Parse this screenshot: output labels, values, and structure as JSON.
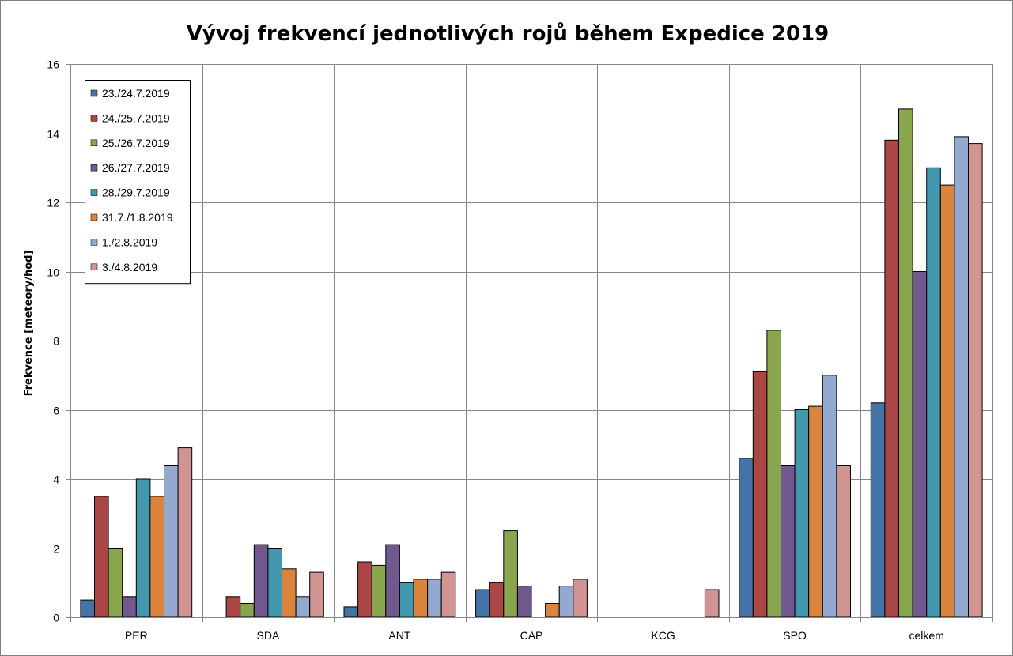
{
  "chart_data": {
    "type": "bar",
    "title": "Vývoj frekvencí jednotlivých rojů během Expedice 2019",
    "xlabel": "",
    "ylabel": "Frekvence [meteory/hod]",
    "ylim": [
      0,
      16
    ],
    "yticks": [
      "0",
      "2",
      "4",
      "6",
      "8",
      "10",
      "12",
      "14",
      "16"
    ],
    "grid": true,
    "legend_position": "top-left",
    "categories": [
      "PER",
      "SDA",
      "ANT",
      "CAP",
      "KCG",
      "SPO",
      "celkem"
    ],
    "series": [
      {
        "name": "23./24.7.2019",
        "color": "#4572A7",
        "values": [
          0.5,
          0,
          0.3,
          0.8,
          0,
          4.6,
          6.2
        ]
      },
      {
        "name": "24./25.7.2019",
        "color": "#AA4643",
        "values": [
          3.5,
          0.6,
          1.6,
          1.0,
          0,
          7.1,
          13.8
        ]
      },
      {
        "name": "25./26.7.2019",
        "color": "#89A54E",
        "values": [
          2.0,
          0.4,
          1.5,
          2.5,
          0,
          8.3,
          14.7
        ]
      },
      {
        "name": "26./27.7.2019",
        "color": "#71588F",
        "values": [
          0.6,
          2.1,
          2.1,
          0.9,
          0,
          4.4,
          10.0
        ]
      },
      {
        "name": "28./29.7.2019",
        "color": "#4198AF",
        "values": [
          4.0,
          2.0,
          1.0,
          0,
          0,
          6.0,
          13.0
        ]
      },
      {
        "name": "31.7./1.8.2019",
        "color": "#DB843D",
        "values": [
          3.5,
          1.4,
          1.1,
          0.4,
          0,
          6.1,
          12.5
        ]
      },
      {
        "name": "1./2.8.2019",
        "color": "#93A9CF",
        "values": [
          4.4,
          0.6,
          1.1,
          0.9,
          0,
          7.0,
          13.9
        ]
      },
      {
        "name": "3./4.8.2019",
        "color": "#D09493",
        "values": [
          4.9,
          1.3,
          1.3,
          1.1,
          0.8,
          4.4,
          13.7
        ]
      }
    ]
  }
}
